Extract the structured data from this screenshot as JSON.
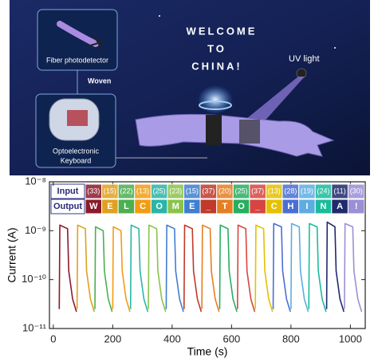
{
  "illustration": {
    "fiber_label": "Fiber photodetector",
    "woven_label": "Woven",
    "keyboard_label": [
      "Optoelectronic",
      "Keyboard"
    ],
    "message": [
      "WELCOME",
      "TO",
      "CHINA!"
    ],
    "uv_label": "UV light"
  },
  "chart_data": {
    "type": "line",
    "log_y": true,
    "grid": false,
    "xlabel": "Time (s)",
    "ylabel": "Current (A)",
    "xlim": [
      -13,
      1050
    ],
    "xticks": [
      0,
      200,
      400,
      600,
      800,
      1000
    ],
    "ylim": [
      1e-11,
      1e-08
    ],
    "yticks": [
      {
        "value": 1e-11,
        "label": "10⁻¹¹"
      },
      {
        "value": 1e-10,
        "label": "10⁻¹⁰"
      },
      {
        "value": 1e-09,
        "label": "10⁻⁹"
      },
      {
        "value": 1e-08,
        "label": "10⁻⁸"
      }
    ],
    "table": {
      "row_labels": [
        "Input",
        "Output"
      ],
      "inputs": [
        "(33)",
        "(15)",
        "(22)",
        "(13)",
        "(25)",
        "(23)",
        "(15)",
        "(37)",
        "(20)",
        "(25)",
        "(37)",
        "(13)",
        "(28)",
        "(19)",
        "(24)",
        "(11)",
        "(30)"
      ],
      "outputs": [
        "W",
        "E",
        "L",
        "C",
        "O",
        "M",
        "E",
        "_",
        "T",
        "O",
        "_",
        "C",
        "H",
        "I",
        "N",
        "A",
        "!"
      ]
    },
    "series": [
      {
        "color": "#8b1a2b",
        "x": [
          20,
          22,
          48,
          52,
          65,
          78
        ],
        "values": [
          2.5e-11,
          1.3e-09,
          1.1e-09,
          1.5e-10,
          4e-11,
          2.2e-11
        ]
      },
      {
        "color": "#e0a020",
        "x": [
          80,
          82,
          108,
          112,
          125,
          138
        ],
        "values": [
          2.5e-11,
          1.3e-09,
          1.1e-09,
          1.5e-10,
          4e-11,
          2.2e-11
        ]
      },
      {
        "color": "#4caf50",
        "x": [
          140,
          142,
          168,
          172,
          185,
          198
        ],
        "values": [
          2.5e-11,
          1.2e-09,
          1e-09,
          1.5e-10,
          4e-11,
          2.2e-11
        ]
      },
      {
        "color": "#f39c12",
        "x": [
          200,
          202,
          228,
          232,
          245,
          258
        ],
        "values": [
          2.5e-11,
          1.2e-09,
          1e-09,
          1.5e-10,
          4e-11,
          2.2e-11
        ]
      },
      {
        "color": "#2bb5a8",
        "x": [
          260,
          262,
          288,
          292,
          305,
          318
        ],
        "values": [
          2.5e-11,
          1.3e-09,
          1.1e-09,
          1.5e-10,
          4e-11,
          2.2e-11
        ]
      },
      {
        "color": "#8bc34a",
        "x": [
          320,
          322,
          348,
          352,
          365,
          378
        ],
        "values": [
          2.5e-11,
          1.3e-09,
          1.1e-09,
          1.5e-10,
          4e-11,
          2.2e-11
        ]
      },
      {
        "color": "#3f7fd0",
        "x": [
          380,
          382,
          408,
          412,
          425,
          438
        ],
        "values": [
          2.5e-11,
          1.3e-09,
          1.1e-09,
          1.5e-10,
          4e-11,
          2.2e-11
        ]
      },
      {
        "color": "#c0392b",
        "x": [
          440,
          442,
          468,
          472,
          485,
          498
        ],
        "values": [
          2.5e-11,
          1.3e-09,
          1.1e-09,
          1.5e-10,
          4e-11,
          2.2e-11
        ]
      },
      {
        "color": "#e67e22",
        "x": [
          500,
          502,
          528,
          532,
          545,
          558
        ],
        "values": [
          2.5e-11,
          1.3e-09,
          1.1e-09,
          1.5e-10,
          4e-11,
          2.2e-11
        ]
      },
      {
        "color": "#27ae60",
        "x": [
          560,
          562,
          588,
          592,
          605,
          618
        ],
        "values": [
          2.5e-11,
          1.3e-09,
          1.1e-09,
          1.5e-10,
          4e-11,
          2.2e-11
        ]
      },
      {
        "color": "#d64541",
        "x": [
          620,
          622,
          648,
          652,
          665,
          678
        ],
        "values": [
          2.5e-11,
          1.3e-09,
          1.1e-09,
          1.5e-10,
          4e-11,
          2.2e-11
        ]
      },
      {
        "color": "#e5c100",
        "x": [
          680,
          682,
          708,
          712,
          725,
          738
        ],
        "values": [
          2.5e-11,
          1.3e-09,
          1.1e-09,
          1.5e-10,
          4e-11,
          2.2e-11
        ]
      },
      {
        "color": "#4a6fd4",
        "x": [
          740,
          742,
          768,
          772,
          785,
          798
        ],
        "values": [
          2.5e-11,
          1.4e-09,
          1.2e-09,
          1.5e-10,
          4e-11,
          2.2e-11
        ]
      },
      {
        "color": "#5dade2",
        "x": [
          800,
          802,
          828,
          832,
          845,
          858
        ],
        "values": [
          2.5e-11,
          1.4e-09,
          1.2e-09,
          1.5e-10,
          4e-11,
          2.2e-11
        ]
      },
      {
        "color": "#1abc9c",
        "x": [
          860,
          862,
          888,
          892,
          905,
          918
        ],
        "values": [
          2.5e-11,
          1.4e-09,
          1.2e-09,
          1.5e-10,
          4e-11,
          2.2e-11
        ]
      },
      {
        "color": "#1f2a6b",
        "x": [
          920,
          922,
          948,
          952,
          965,
          978
        ],
        "values": [
          2.5e-11,
          1.5e-09,
          1.2e-09,
          1.5e-10,
          4e-11,
          2.2e-11
        ]
      },
      {
        "color": "#9b8fd6",
        "x": [
          980,
          982,
          1008,
          1012,
          1025,
          1038
        ],
        "values": [
          2.5e-11,
          1.4e-09,
          1.2e-09,
          1.5e-10,
          4e-11,
          2.2e-11
        ]
      }
    ]
  }
}
